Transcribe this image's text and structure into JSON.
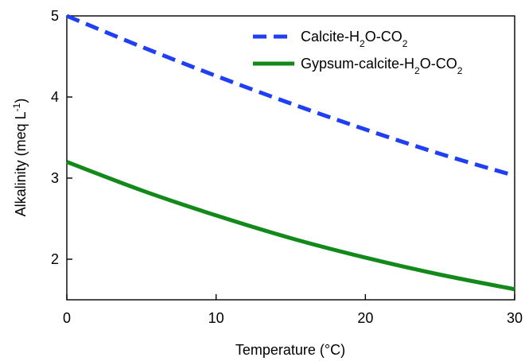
{
  "chart_data": {
    "type": "line",
    "xlabel": "Temperature (°C)",
    "ylabel": {
      "main": "Alkalinity (meq L",
      "sup": "-1",
      "close": ")"
    },
    "xlim": [
      0,
      30
    ],
    "ylim": [
      1.5,
      5
    ],
    "xticks": [
      0,
      10,
      20,
      30
    ],
    "yticks": [
      2,
      3,
      4,
      5
    ],
    "grid": false,
    "legend_position": "top-right",
    "series": [
      {
        "name": "Calcite-H2O-CO2",
        "name_parts": [
          {
            "t": "Calcite-H",
            "sub": false
          },
          {
            "t": "2",
            "sub": true
          },
          {
            "t": "O-CO",
            "sub": false
          },
          {
            "t": "2",
            "sub": true
          }
        ],
        "color": "#1f3ff5",
        "style": "dashed",
        "x": [
          0,
          5,
          10,
          15,
          20,
          25,
          30
        ],
        "y": [
          5.0,
          4.62,
          4.26,
          3.92,
          3.6,
          3.3,
          3.03
        ]
      },
      {
        "name": "Gypsum-calcite-H2O-CO2",
        "name_parts": [
          {
            "t": "Gypsum-calcite-H",
            "sub": false
          },
          {
            "t": "2",
            "sub": true
          },
          {
            "t": "O-CO",
            "sub": false
          },
          {
            "t": "2",
            "sub": true
          }
        ],
        "color": "#13891a",
        "style": "solid",
        "x": [
          0,
          5,
          10,
          15,
          20,
          25,
          30
        ],
        "y": [
          3.2,
          2.85,
          2.54,
          2.26,
          2.02,
          1.81,
          1.63
        ]
      }
    ]
  }
}
